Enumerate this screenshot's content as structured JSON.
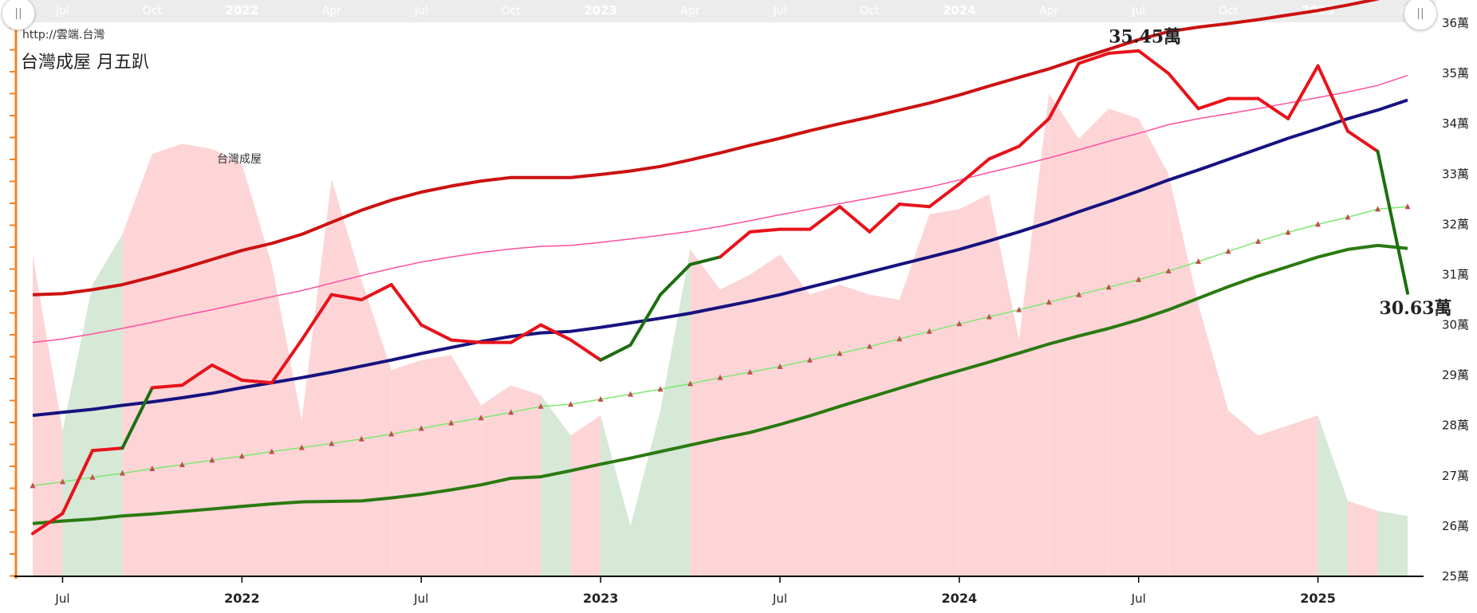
{
  "site_url": "http://雲端.台灣",
  "title": "台灣成屋 月五趴",
  "handles": {
    "left_label": "||",
    "right_label": "||"
  },
  "colors": {
    "price_line": "#e8121a",
    "up_segment": "#1d6e10",
    "down_area": "#fdd5d7",
    "up_area": "#d6e8d6",
    "upper_band": "#cc1111",
    "pink_line": "#ff4fa0",
    "mid_line": "#16127f",
    "light_green": "#7ee870",
    "marker": "#c0504d",
    "lower_band": "#2a7a10",
    "axis_orange": "#f58220",
    "navigator_bg": "#ececec"
  },
  "chart_data": {
    "type": "line",
    "title": "台灣成屋 月五趴",
    "x_start": "2021-06",
    "x_end": "2025-04",
    "x": [
      "2021-06",
      "2021-07",
      "2021-08",
      "2021-09",
      "2021-10",
      "2021-11",
      "2021-12",
      "2022-01",
      "2022-02",
      "2022-03",
      "2022-04",
      "2022-05",
      "2022-06",
      "2022-07",
      "2022-08",
      "2022-09",
      "2022-10",
      "2022-11",
      "2022-12",
      "2023-01",
      "2023-02",
      "2023-03",
      "2023-04",
      "2023-05",
      "2023-06",
      "2023-07",
      "2023-08",
      "2023-09",
      "2023-10",
      "2023-11",
      "2023-12",
      "2024-01",
      "2024-02",
      "2024-03",
      "2024-04",
      "2024-05",
      "2024-06",
      "2024-07",
      "2024-08",
      "2024-09",
      "2024-10",
      "2024-11",
      "2024-12",
      "2025-01",
      "2025-02",
      "2025-03",
      "2025-04"
    ],
    "ylim": [
      25,
      36
    ],
    "y_ticks": [
      25,
      26,
      27,
      28,
      29,
      30,
      31,
      32,
      33,
      34,
      35,
      36
    ],
    "y_tick_suffix": "萬",
    "x_ticks_bottom": [
      {
        "date": "2021-07",
        "label": "Jul",
        "bold": false
      },
      {
        "date": "2022-01",
        "label": "2022",
        "bold": true
      },
      {
        "date": "2022-07",
        "label": "Jul",
        "bold": false
      },
      {
        "date": "2023-01",
        "label": "2023",
        "bold": true
      },
      {
        "date": "2023-07",
        "label": "Jul",
        "bold": false
      },
      {
        "date": "2024-01",
        "label": "2024",
        "bold": true
      },
      {
        "date": "2024-07",
        "label": "Jul",
        "bold": false
      },
      {
        "date": "2025-01",
        "label": "2025",
        "bold": true
      }
    ],
    "x_ticks_navigator": [
      {
        "date": "2021-07",
        "label": "Jul",
        "bold": false
      },
      {
        "date": "2021-10",
        "label": "Oct",
        "bold": false
      },
      {
        "date": "2022-01",
        "label": "2022",
        "bold": true
      },
      {
        "date": "2022-04",
        "label": "Apr",
        "bold": false
      },
      {
        "date": "2022-07",
        "label": "Jul",
        "bold": false
      },
      {
        "date": "2022-10",
        "label": "Oct",
        "bold": false
      },
      {
        "date": "2023-01",
        "label": "2023",
        "bold": true
      },
      {
        "date": "2023-04",
        "label": "Apr",
        "bold": false
      },
      {
        "date": "2023-07",
        "label": "Jul",
        "bold": false
      },
      {
        "date": "2023-10",
        "label": "Oct",
        "bold": false
      },
      {
        "date": "2024-01",
        "label": "2024",
        "bold": true
      },
      {
        "date": "2024-04",
        "label": "Apr",
        "bold": false
      },
      {
        "date": "2024-07",
        "label": "Jul",
        "bold": false
      },
      {
        "date": "2024-10",
        "label": "Oct",
        "bold": false
      },
      {
        "date": "2025-01",
        "label": "2025",
        "bold": true
      },
      {
        "date": "2025-04",
        "label": "Ap",
        "bold": false
      }
    ],
    "area_label": "台灣成屋",
    "area_baseline": 25,
    "area_values": [
      31.4,
      27.9,
      30.8,
      31.8,
      33.4,
      33.6,
      33.5,
      33.2,
      31.2,
      28.1,
      32.9,
      30.9,
      29.1,
      29.3,
      29.4,
      28.4,
      28.8,
      28.6,
      27.8,
      28.2,
      26.0,
      28.3,
      31.5,
      30.7,
      31.0,
      31.4,
      30.6,
      30.8,
      30.6,
      30.5,
      32.2,
      32.3,
      32.6,
      29.7,
      34.6,
      33.7,
      34.3,
      34.1,
      33.0,
      30.4,
      28.3,
      27.8,
      28.0,
      28.2,
      26.5,
      26.3,
      26.2
    ],
    "area_up_ranges": [
      [
        1,
        3
      ],
      [
        17,
        18
      ],
      [
        19,
        22
      ],
      [
        43,
        44
      ],
      [
        45,
        46
      ]
    ],
    "price_values": [
      25.85,
      26.25,
      27.5,
      27.55,
      28.75,
      28.8,
      29.2,
      28.9,
      28.85,
      29.7,
      30.6,
      30.5,
      30.8,
      30.0,
      29.7,
      29.65,
      29.65,
      30.0,
      29.7,
      29.3,
      29.6,
      30.6,
      31.2,
      31.35,
      31.85,
      31.9,
      31.9,
      32.35,
      31.85,
      32.4,
      32.35,
      32.8,
      33.3,
      33.55,
      34.1,
      35.2,
      35.4,
      35.45,
      35.0,
      34.3,
      34.5,
      34.5,
      34.1,
      35.15,
      33.85,
      33.45,
      30.63
    ],
    "price_up_ranges": [
      [
        3,
        4
      ],
      [
        19,
        23
      ],
      [
        45,
        46
      ]
    ],
    "price_peak": {
      "index": 37,
      "label": "35.45萬"
    },
    "price_last": {
      "index": 46,
      "label": "30.63萬"
    },
    "series": [
      {
        "key": "upper",
        "values": [
          30.6,
          30.62,
          30.7,
          30.8,
          30.95,
          31.12,
          31.3,
          31.48,
          31.62,
          31.8,
          32.04,
          32.28,
          32.48,
          32.64,
          32.76,
          32.86,
          32.93,
          32.93,
          32.93,
          32.99,
          33.06,
          33.15,
          33.28,
          33.42,
          33.57,
          33.71,
          33.86,
          34.0,
          34.13,
          34.27,
          34.41,
          34.57,
          34.75,
          34.92,
          35.09,
          35.29,
          35.48,
          35.67,
          35.83,
          35.92,
          35.99,
          36.07,
          36.16,
          36.25,
          36.36,
          36.48,
          36.73
        ]
      },
      {
        "key": "pink",
        "values": [
          29.65,
          29.72,
          29.82,
          29.93,
          30.05,
          30.18,
          30.3,
          30.43,
          30.56,
          30.68,
          30.83,
          30.98,
          31.12,
          31.25,
          31.35,
          31.44,
          31.51,
          31.56,
          31.58,
          31.64,
          31.71,
          31.78,
          31.86,
          31.96,
          32.07,
          32.19,
          32.3,
          32.41,
          32.52,
          32.63,
          32.74,
          32.88,
          33.03,
          33.17,
          33.32,
          33.48,
          33.65,
          33.81,
          33.98,
          34.1,
          34.2,
          34.3,
          34.41,
          34.52,
          34.63,
          34.76,
          34.96
        ]
      },
      {
        "key": "mid",
        "values": [
          28.2,
          28.26,
          28.32,
          28.4,
          28.47,
          28.55,
          28.64,
          28.75,
          28.85,
          28.95,
          29.06,
          29.18,
          29.3,
          29.43,
          29.55,
          29.67,
          29.77,
          29.84,
          29.87,
          29.95,
          30.04,
          30.13,
          30.23,
          30.35,
          30.47,
          30.6,
          30.75,
          30.9,
          31.05,
          31.2,
          31.35,
          31.5,
          31.67,
          31.85,
          32.04,
          32.25,
          32.45,
          32.66,
          32.88,
          33.08,
          33.29,
          33.5,
          33.71,
          33.9,
          34.1,
          34.27,
          34.47
        ]
      },
      {
        "key": "light",
        "values": [
          26.8,
          26.88,
          26.97,
          27.05,
          27.14,
          27.22,
          27.31,
          27.39,
          27.48,
          27.56,
          27.64,
          27.73,
          27.83,
          27.94,
          28.05,
          28.15,
          28.26,
          28.38,
          28.42,
          28.52,
          28.62,
          28.72,
          28.83,
          28.95,
          29.06,
          29.17,
          29.3,
          29.43,
          29.57,
          29.72,
          29.87,
          30.02,
          30.16,
          30.3,
          30.45,
          30.6,
          30.75,
          30.9,
          31.07,
          31.26,
          31.46,
          31.66,
          31.84,
          32.0,
          32.14,
          32.3,
          32.35
        ]
      },
      {
        "key": "lower",
        "values": [
          26.05,
          26.1,
          26.14,
          26.2,
          26.24,
          26.29,
          26.34,
          26.39,
          26.44,
          26.48,
          26.49,
          26.5,
          26.56,
          26.63,
          26.72,
          26.82,
          26.95,
          26.98,
          27.1,
          27.23,
          27.35,
          27.48,
          27.61,
          27.74,
          27.86,
          28.02,
          28.19,
          28.38,
          28.56,
          28.74,
          28.92,
          29.09,
          29.26,
          29.44,
          29.62,
          29.78,
          29.93,
          30.1,
          30.3,
          30.53,
          30.76,
          30.97,
          31.16,
          31.35,
          31.5,
          31.58,
          31.52
        ]
      }
    ]
  }
}
